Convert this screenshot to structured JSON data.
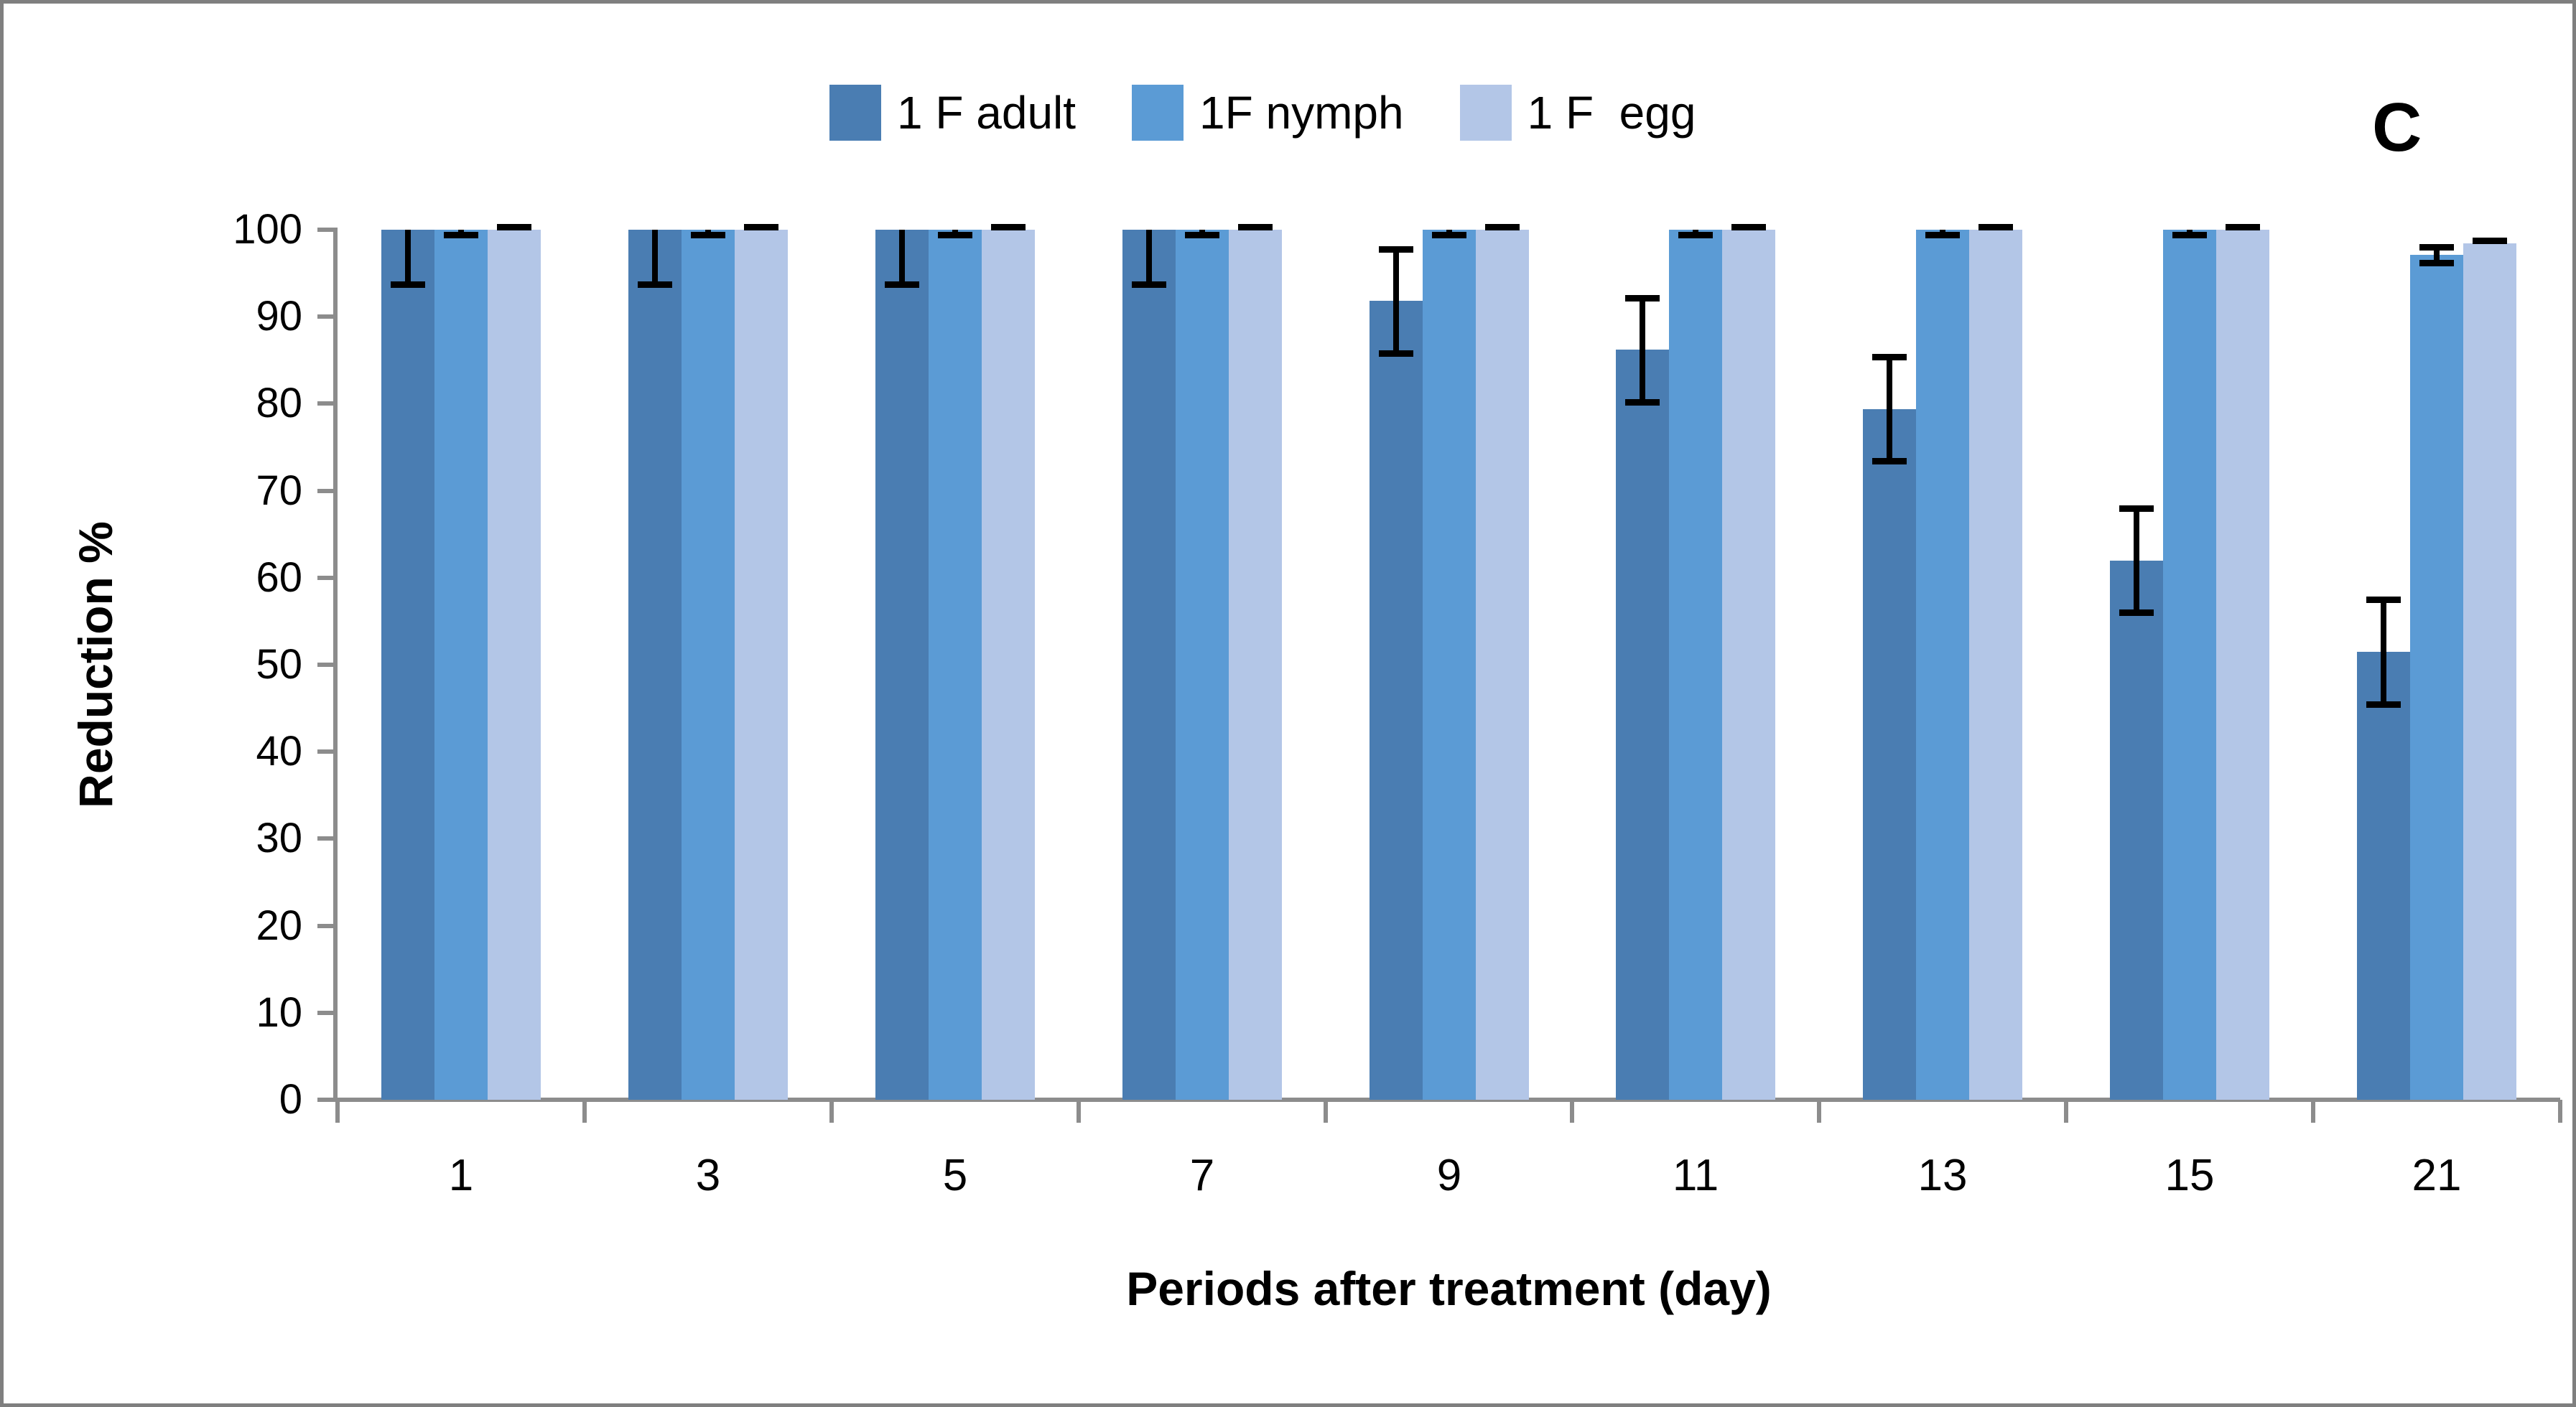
{
  "chart_data": {
    "type": "bar",
    "title": "",
    "panel_label": "C",
    "xlabel": "Periods after treatment (day)",
    "ylabel": "Reduction %",
    "categories": [
      "1",
      "3",
      "5",
      "7",
      "9",
      "11",
      "13",
      "15",
      "21"
    ],
    "ylim": [
      0,
      100
    ],
    "ytick_step": 10,
    "grid": false,
    "legend_position": "top-center",
    "axis_color": "#8c8c8c",
    "error_bar_color": "#000000",
    "series": [
      {
        "name": "1 F adult",
        "color": "#4A7DB2",
        "values": [
          100,
          100,
          100,
          100,
          91.8,
          86.2,
          79.4,
          62,
          51.5
        ],
        "err_up": [
          0,
          0,
          0,
          0,
          6,
          6,
          6,
          6,
          6
        ],
        "err_down": [
          6.3,
          6.3,
          6.3,
          6.3,
          6,
          6,
          6,
          6,
          6
        ]
      },
      {
        "name": "1F nymph",
        "color": "#5B9BD5",
        "values": [
          100,
          100,
          100,
          100,
          100,
          100,
          100,
          100,
          97.1
        ],
        "err_up": [
          0,
          0,
          0,
          0,
          0,
          0,
          0,
          0,
          0.9
        ],
        "err_down": [
          0.6,
          0.6,
          0.6,
          0.6,
          0.6,
          0.6,
          0.6,
          0.6,
          0.9
        ]
      },
      {
        "name": "1 F  egg",
        "color": "#B3C6E7",
        "values": [
          100,
          100,
          100,
          100,
          100,
          100,
          100,
          100,
          98.4
        ],
        "err_up": [
          0.3,
          0.3,
          0.3,
          0.3,
          0.3,
          0.3,
          0.3,
          0.3,
          0.4
        ],
        "err_down": [
          0,
          0,
          0,
          0,
          0,
          0,
          0,
          0,
          0
        ]
      }
    ]
  }
}
